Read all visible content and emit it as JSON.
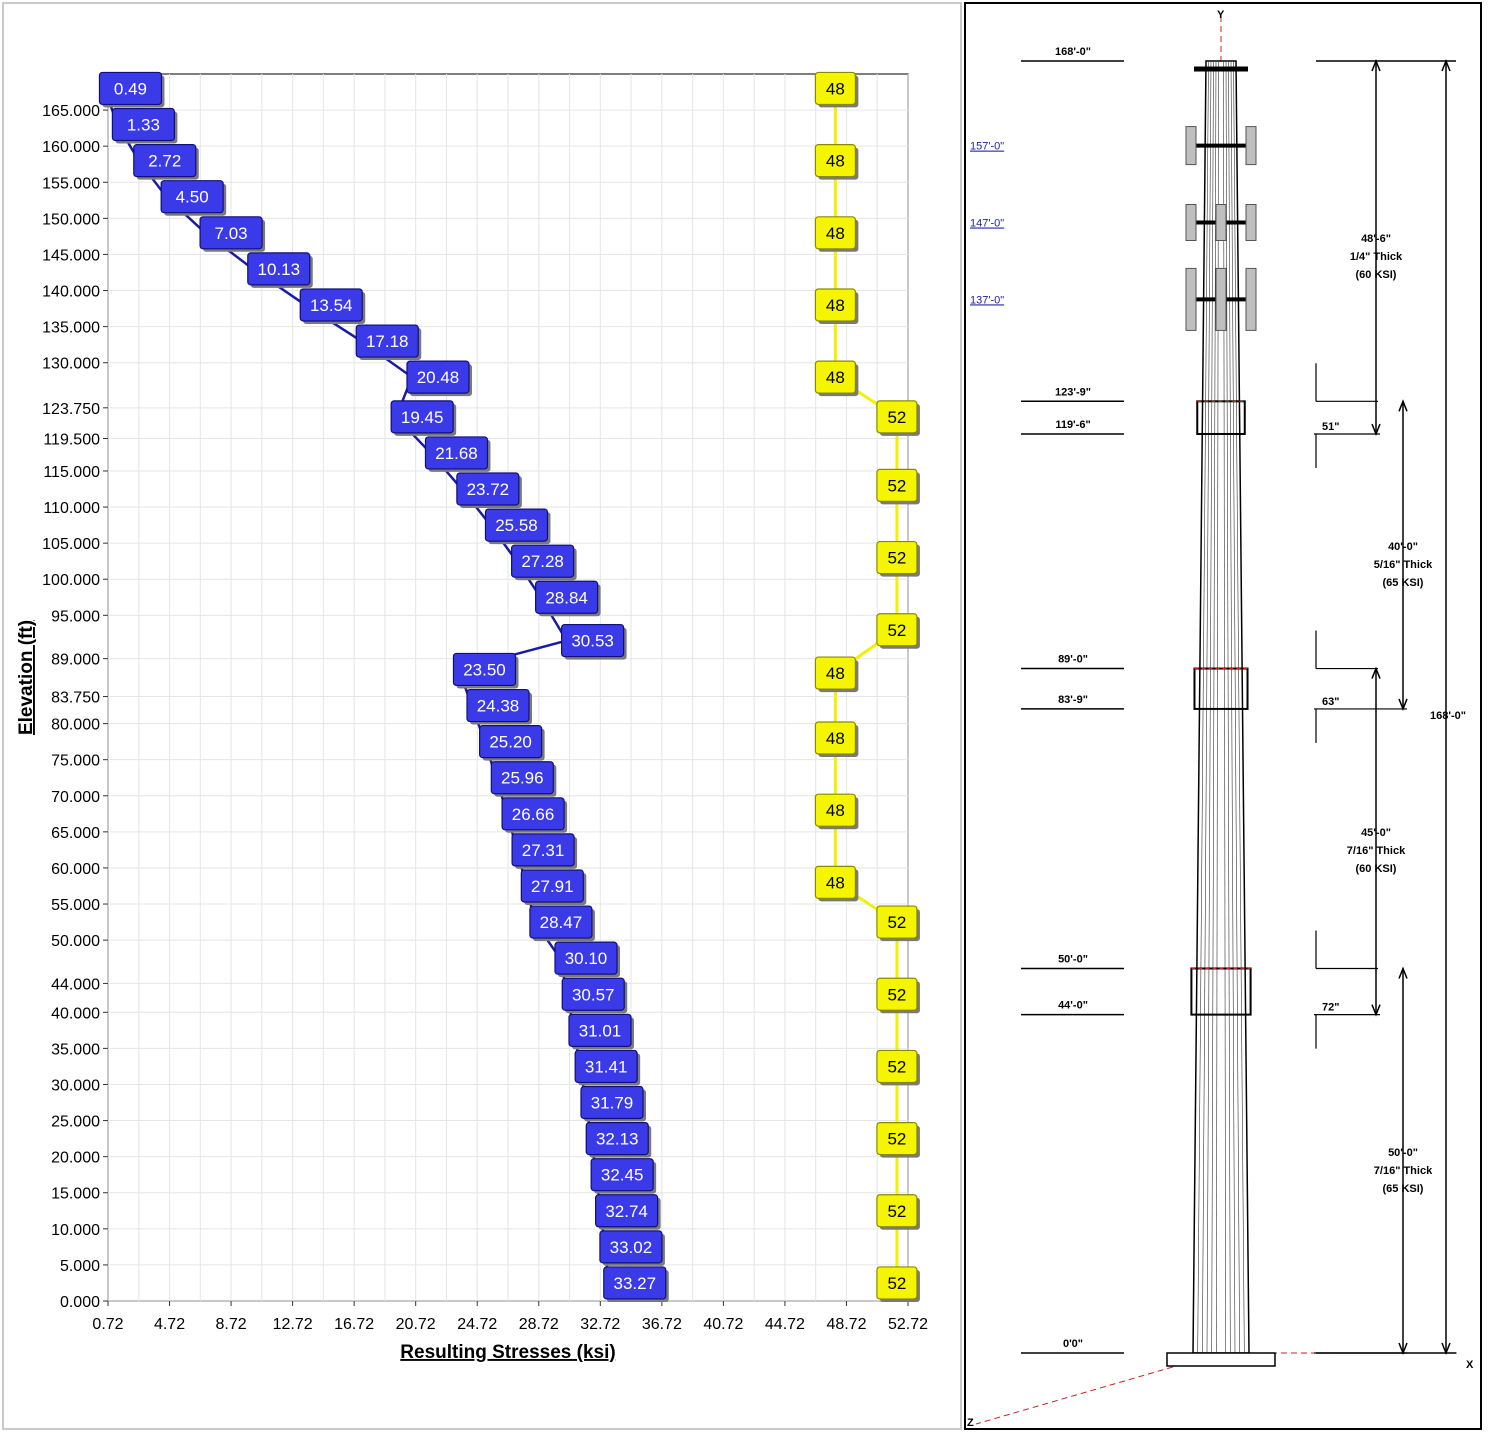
{
  "chart_data": {
    "type": "line",
    "xlabel": "Resulting Stresses (ksi)",
    "ylabel": "Elevation (ft)",
    "xlim": [
      0.72,
      52.72
    ],
    "ylim": [
      0,
      170
    ],
    "x_ticks": [
      "0.72",
      "4.72",
      "8.72",
      "12.72",
      "16.72",
      "20.72",
      "24.72",
      "28.72",
      "32.72",
      "36.72",
      "40.72",
      "44.72",
      "48.72",
      "52.72"
    ],
    "y_ticks": [
      {
        "v": 0,
        "label": "0.000"
      },
      {
        "v": 5,
        "label": "5.000"
      },
      {
        "v": 10,
        "label": "10.000"
      },
      {
        "v": 15,
        "label": "15.000"
      },
      {
        "v": 20,
        "label": "20.000"
      },
      {
        "v": 25,
        "label": "25.000"
      },
      {
        "v": 30,
        "label": "30.000"
      },
      {
        "v": 35,
        "label": "35.000"
      },
      {
        "v": 40,
        "label": "40.000"
      },
      {
        "v": 44,
        "label": "44.000"
      },
      {
        "v": 50,
        "label": "50.000"
      },
      {
        "v": 55,
        "label": "55.000"
      },
      {
        "v": 60,
        "label": "60.000"
      },
      {
        "v": 65,
        "label": "65.000"
      },
      {
        "v": 70,
        "label": "70.000"
      },
      {
        "v": 75,
        "label": "75.000"
      },
      {
        "v": 80,
        "label": "80.000"
      },
      {
        "v": 83.75,
        "label": "83.750"
      },
      {
        "v": 89,
        "label": "89.000"
      },
      {
        "v": 95,
        "label": "95.000"
      },
      {
        "v": 100,
        "label": "100.000"
      },
      {
        "v": 105,
        "label": "105.000"
      },
      {
        "v": 110,
        "label": "110.000"
      },
      {
        "v": 115,
        "label": "115.000"
      },
      {
        "v": 119.5,
        "label": "119.500"
      },
      {
        "v": 123.75,
        "label": "123.750"
      },
      {
        "v": 130,
        "label": "130.000"
      },
      {
        "v": 135,
        "label": "135.000"
      },
      {
        "v": 140,
        "label": "140.000"
      },
      {
        "v": 145,
        "label": "145.000"
      },
      {
        "v": 150,
        "label": "150.000"
      },
      {
        "v": 155,
        "label": "155.000"
      },
      {
        "v": 160,
        "label": "160.000"
      },
      {
        "v": 165,
        "label": "165.000"
      }
    ],
    "series": [
      {
        "color": "#1a1aa8",
        "label_fill": "#3a3ae8",
        "points": [
          {
            "x": 0.49,
            "y": 168,
            "label": "0.49"
          },
          {
            "x": 1.33,
            "y": 163,
            "label": "1.33"
          },
          {
            "x": 2.72,
            "y": 158,
            "label": "2.72"
          },
          {
            "x": 4.5,
            "y": 153,
            "label": "4.50"
          },
          {
            "x": 7.03,
            "y": 148,
            "label": "7.03"
          },
          {
            "x": 10.13,
            "y": 143,
            "label": "10.13"
          },
          {
            "x": 13.54,
            "y": 138,
            "label": "13.54"
          },
          {
            "x": 17.18,
            "y": 133,
            "label": "17.18"
          },
          {
            "x": 20.48,
            "y": 128,
            "label": "20.48"
          },
          {
            "x": 19.45,
            "y": 122.5,
            "label": "19.45"
          },
          {
            "x": 21.68,
            "y": 117.5,
            "label": "21.68"
          },
          {
            "x": 23.72,
            "y": 112.5,
            "label": "23.72"
          },
          {
            "x": 25.58,
            "y": 107.5,
            "label": "25.58"
          },
          {
            "x": 27.28,
            "y": 102.5,
            "label": "27.28"
          },
          {
            "x": 28.84,
            "y": 97.5,
            "label": "28.84"
          },
          {
            "x": 30.53,
            "y": 91.5,
            "label": "30.53"
          },
          {
            "x": 23.5,
            "y": 87.5,
            "label": "23.50"
          },
          {
            "x": 24.38,
            "y": 82.5,
            "label": "24.38"
          },
          {
            "x": 25.2,
            "y": 77.5,
            "label": "25.20"
          },
          {
            "x": 25.96,
            "y": 72.5,
            "label": "25.96"
          },
          {
            "x": 26.66,
            "y": 67.5,
            "label": "26.66"
          },
          {
            "x": 27.31,
            "y": 62.5,
            "label": "27.31"
          },
          {
            "x": 27.91,
            "y": 57.5,
            "label": "27.91"
          },
          {
            "x": 28.47,
            "y": 52.5,
            "label": "28.47"
          },
          {
            "x": 30.1,
            "y": 47.5,
            "label": "30.10"
          },
          {
            "x": 30.57,
            "y": 42.5,
            "label": "30.57"
          },
          {
            "x": 31.01,
            "y": 37.5,
            "label": "31.01"
          },
          {
            "x": 31.41,
            "y": 32.5,
            "label": "31.41"
          },
          {
            "x": 31.79,
            "y": 27.5,
            "label": "31.79"
          },
          {
            "x": 32.13,
            "y": 22.5,
            "label": "32.13"
          },
          {
            "x": 32.45,
            "y": 17.5,
            "label": "32.45"
          },
          {
            "x": 32.74,
            "y": 12.5,
            "label": "32.74"
          },
          {
            "x": 33.02,
            "y": 7.5,
            "label": "33.02"
          },
          {
            "x": 33.27,
            "y": 2.5,
            "label": "33.27"
          }
        ]
      },
      {
        "color": "#f2f200",
        "label_fill": "#f5f500",
        "points": [
          {
            "x": 48,
            "y": 168,
            "label": "48"
          },
          {
            "x": 48,
            "y": 158,
            "label": "48"
          },
          {
            "x": 48,
            "y": 148,
            "label": "48"
          },
          {
            "x": 48,
            "y": 138,
            "label": "48"
          },
          {
            "x": 48,
            "y": 128,
            "label": "48"
          },
          {
            "x": 52,
            "y": 122.5,
            "label": "52"
          },
          {
            "x": 52,
            "y": 113,
            "label": "52"
          },
          {
            "x": 52,
            "y": 103,
            "label": "52"
          },
          {
            "x": 52,
            "y": 93,
            "label": "52"
          },
          {
            "x": 48,
            "y": 87,
            "label": "48"
          },
          {
            "x": 48,
            "y": 78,
            "label": "48"
          },
          {
            "x": 48,
            "y": 68,
            "label": "48"
          },
          {
            "x": 48,
            "y": 58,
            "label": "48"
          },
          {
            "x": 52,
            "y": 52.5,
            "label": "52"
          },
          {
            "x": 52,
            "y": 42.5,
            "label": "52"
          },
          {
            "x": 52,
            "y": 32.5,
            "label": "52"
          },
          {
            "x": 52,
            "y": 22.5,
            "label": "52"
          },
          {
            "x": 52,
            "y": 12.5,
            "label": "52"
          },
          {
            "x": 52,
            "y": 2.5,
            "label": "52"
          }
        ]
      }
    ]
  },
  "drawing": {
    "axis_y_label": "Y",
    "axis_x_label": "X",
    "axis_z_label": "Z",
    "elevations": [
      {
        "ft": 168,
        "label": "168'-0\""
      },
      {
        "ft": 123.75,
        "label": "123'-9\""
      },
      {
        "ft": 119.5,
        "label": "119'-6\""
      },
      {
        "ft": 89,
        "label": "89'-0\""
      },
      {
        "ft": 83.75,
        "label": "83'-9\""
      },
      {
        "ft": 50,
        "label": "50'-0\""
      },
      {
        "ft": 44,
        "label": "44'-0\""
      },
      {
        "ft": 0,
        "label": "0'0\""
      }
    ],
    "mount_labels": [
      {
        "ft": 157,
        "label": "157'-0\""
      },
      {
        "ft": 147,
        "label": "147'-0\""
      },
      {
        "ft": 137,
        "label": "137'-0\""
      }
    ],
    "sections": [
      {
        "lines": [
          "48'-6\"",
          "1/4\" Thick",
          "(60 KSI)"
        ]
      },
      {
        "lines": [
          "40'-0\"",
          "5/16\" Thick",
          "(65 KSI)"
        ]
      },
      {
        "lines": [
          "45'-0\"",
          "7/16\" Thick",
          "(60 KSI)"
        ]
      },
      {
        "lines": [
          "50'-0\"",
          "7/16\" Thick",
          "(65 KSI)"
        ]
      }
    ],
    "splices": [
      "51\"",
      "63\"",
      "72\""
    ],
    "overall": "168'-0\""
  }
}
